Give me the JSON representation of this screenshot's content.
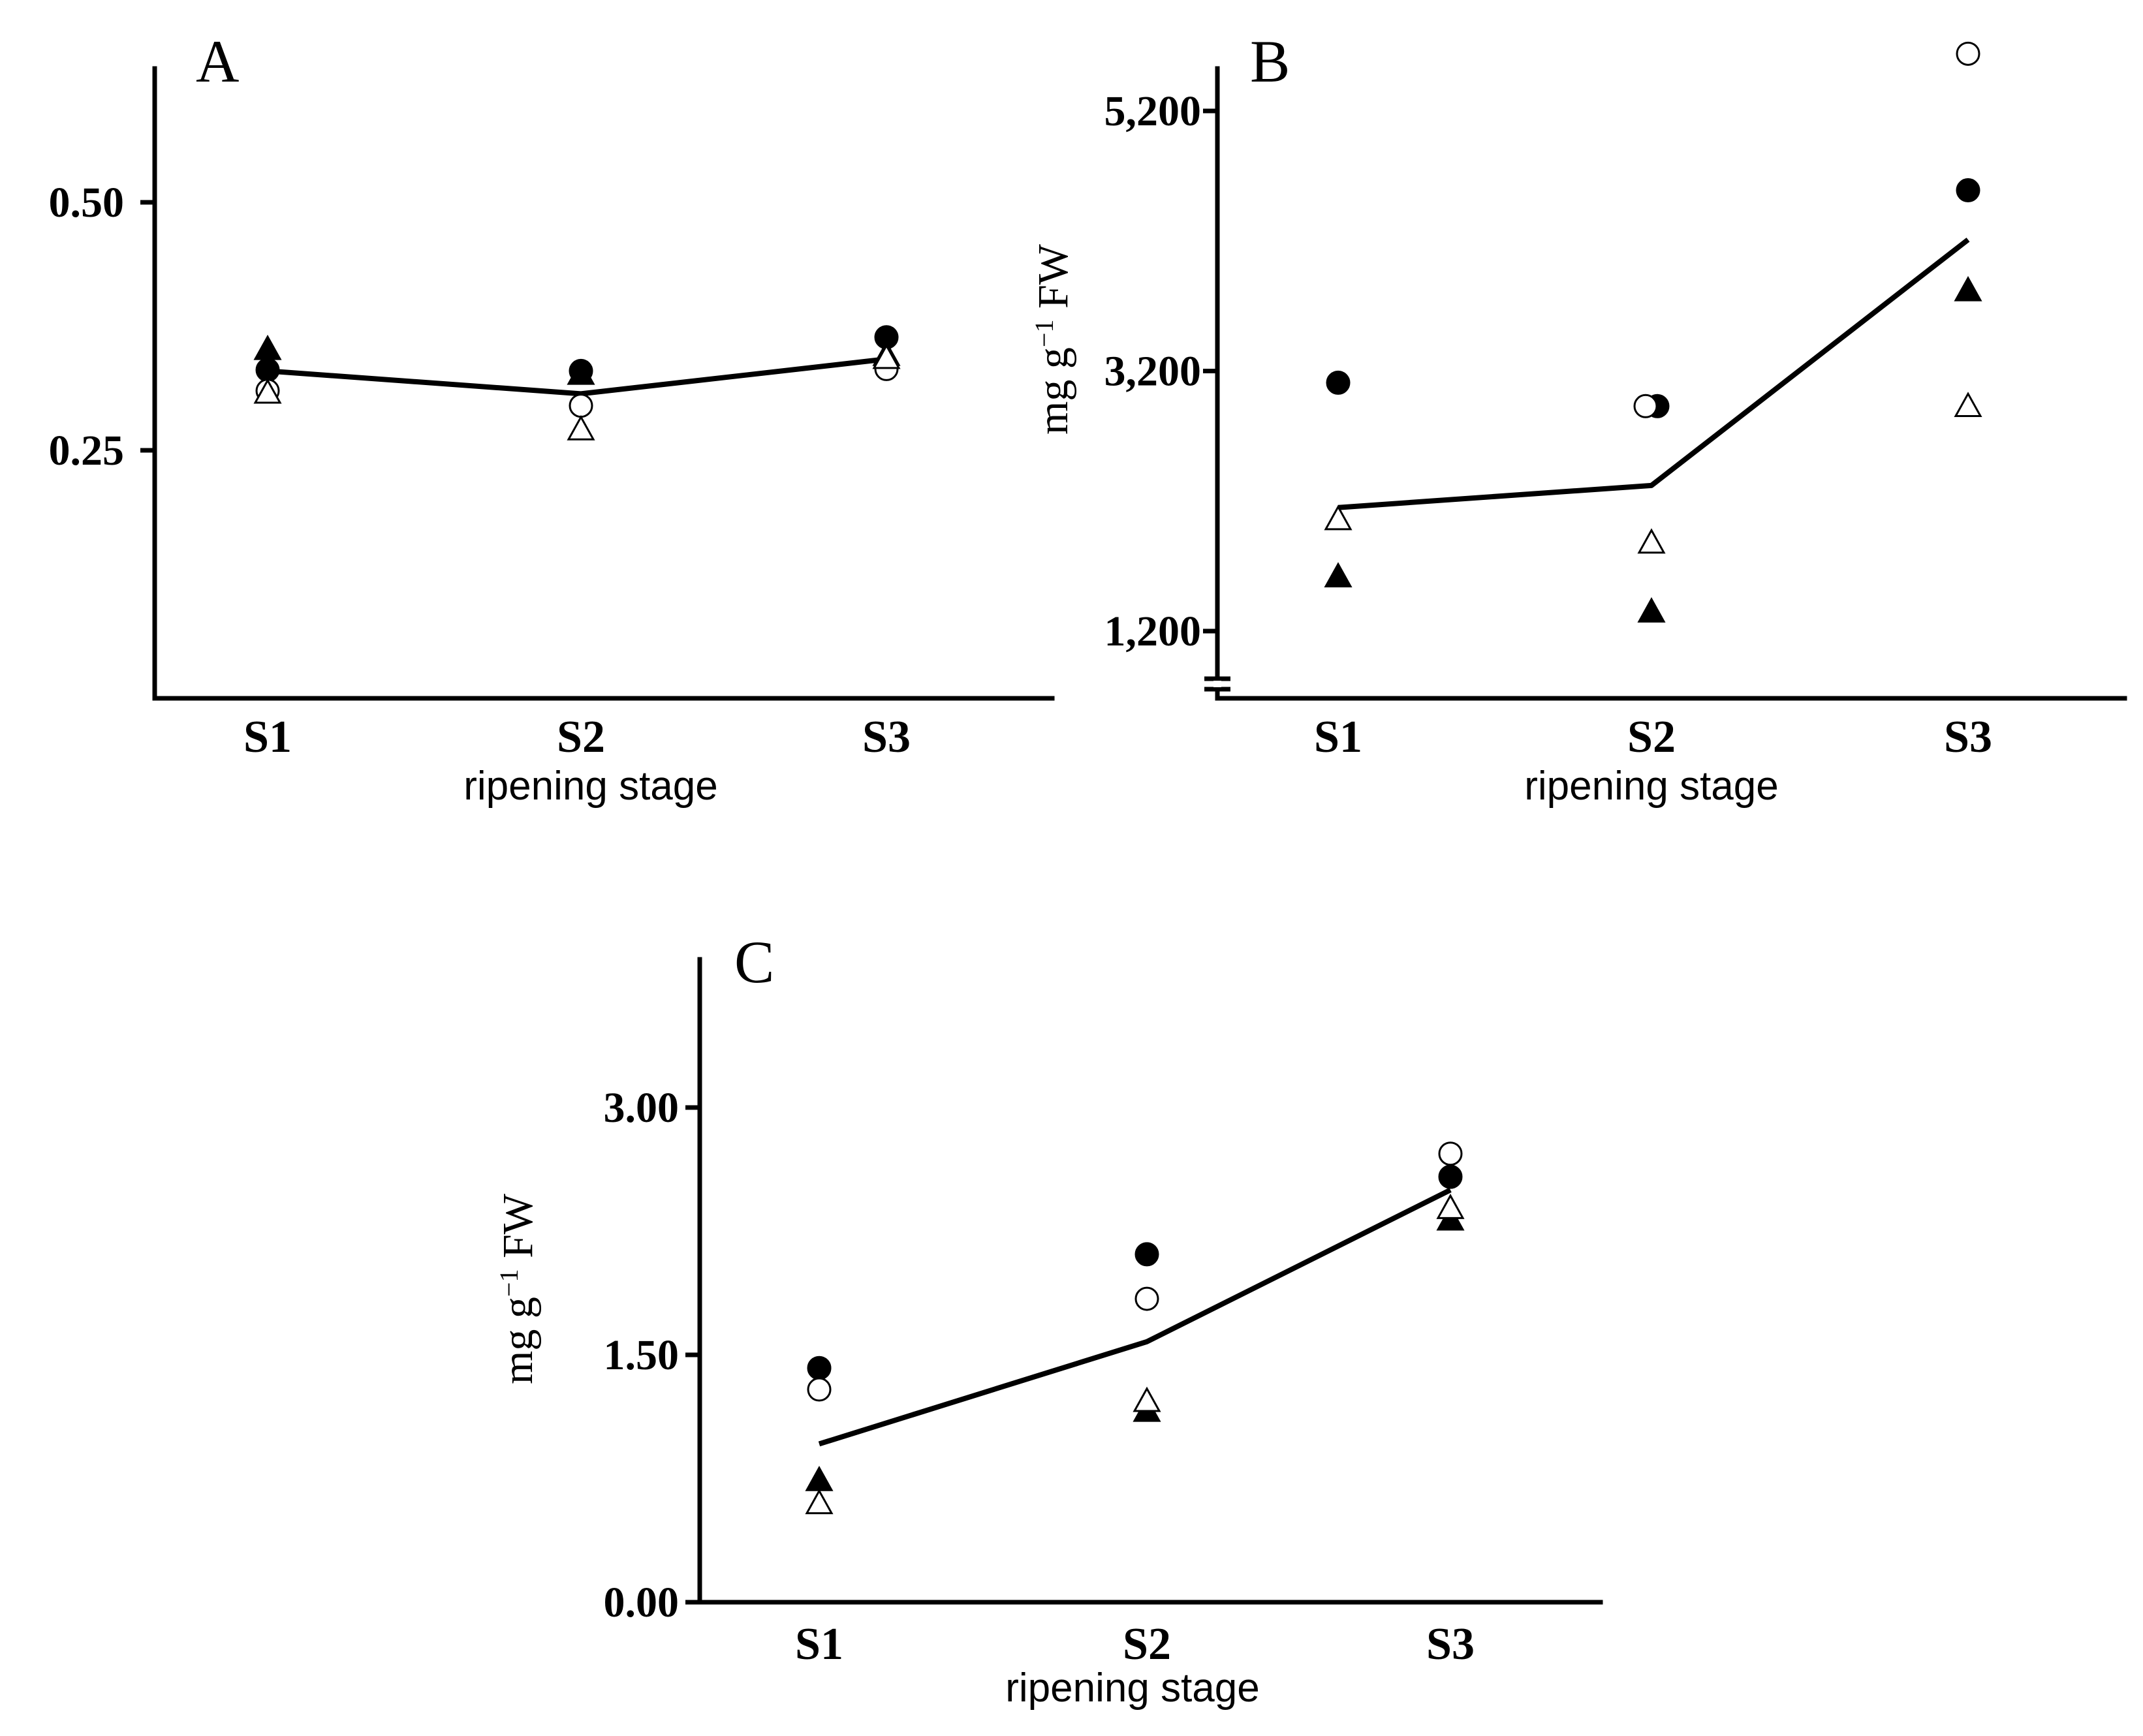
{
  "chart_data": [
    {
      "panel": "A",
      "type": "scatter",
      "categories": [
        "S1",
        "S2",
        "S3"
      ],
      "xlabel": "ripening stage",
      "ylabel": "",
      "yticks": [
        "0.25",
        "0.50"
      ],
      "ylim": [
        0.0,
        0.64
      ],
      "mean_line": [
        0.33,
        0.307,
        0.342
      ],
      "series": [
        {
          "name": "filled circle",
          "marker": "circle",
          "filled": true,
          "values": [
            0.331,
            0.33,
            0.364
          ]
        },
        {
          "name": "open circle",
          "marker": "circle",
          "filled": false,
          "values": [
            0.31,
            0.295,
            0.332
          ]
        },
        {
          "name": "filled triangle",
          "marker": "triangle",
          "filled": true,
          "values": [
            0.352,
            0.327,
            0.346
          ]
        },
        {
          "name": "open triangle",
          "marker": "triangle",
          "filled": false,
          "values": [
            0.308,
            0.271,
            0.343
          ]
        }
      ]
    },
    {
      "panel": "B",
      "type": "scatter",
      "categories": [
        "S1",
        "S2",
        "S3"
      ],
      "xlabel": "ripening stage",
      "ylabel": "mg g⁻¹ FW",
      "yticks": [
        "1,200",
        "3,200",
        "5,200"
      ],
      "ylim": [
        700,
        5550
      ],
      "axis_break": true,
      "mean_line": [
        2150,
        2320,
        4210
      ],
      "series": [
        {
          "name": "filled circle",
          "marker": "circle",
          "filled": true,
          "values": [
            3110,
            2930,
            4590
          ]
        },
        {
          "name": "open circle",
          "marker": "circle",
          "filled": false,
          "values": null,
          "values_list": [
            null,
            2930,
            5640
          ]
        },
        {
          "name": "filled triangle",
          "marker": "triangle",
          "filled": true,
          "values": [
            1620,
            1350,
            3820
          ]
        },
        {
          "name": "open triangle",
          "marker": "triangle",
          "filled": false,
          "values": [
            2060,
            1880,
            2930
          ]
        }
      ]
    },
    {
      "panel": "C",
      "type": "scatter",
      "categories": [
        "S1",
        "S2",
        "S3"
      ],
      "xlabel": "ripening stage",
      "ylabel": "mg g⁻¹ FW",
      "yticks": [
        "0.00",
        "1.50",
        "3.00"
      ],
      "ylim": [
        0.0,
        3.9
      ],
      "mean_line": [
        0.96,
        1.58,
        2.5
      ],
      "series": [
        {
          "name": "filled circle",
          "marker": "circle",
          "filled": true,
          "values": [
            1.42,
            2.11,
            2.58
          ]
        },
        {
          "name": "open circle",
          "marker": "circle",
          "filled": false,
          "values": [
            1.29,
            1.84,
            2.72
          ]
        },
        {
          "name": "filled triangle",
          "marker": "triangle",
          "filled": true,
          "values": [
            0.74,
            1.16,
            2.32
          ]
        },
        {
          "name": "open triangle",
          "marker": "triangle",
          "filled": false,
          "values": [
            0.6,
            1.22,
            2.39
          ]
        }
      ]
    }
  ]
}
